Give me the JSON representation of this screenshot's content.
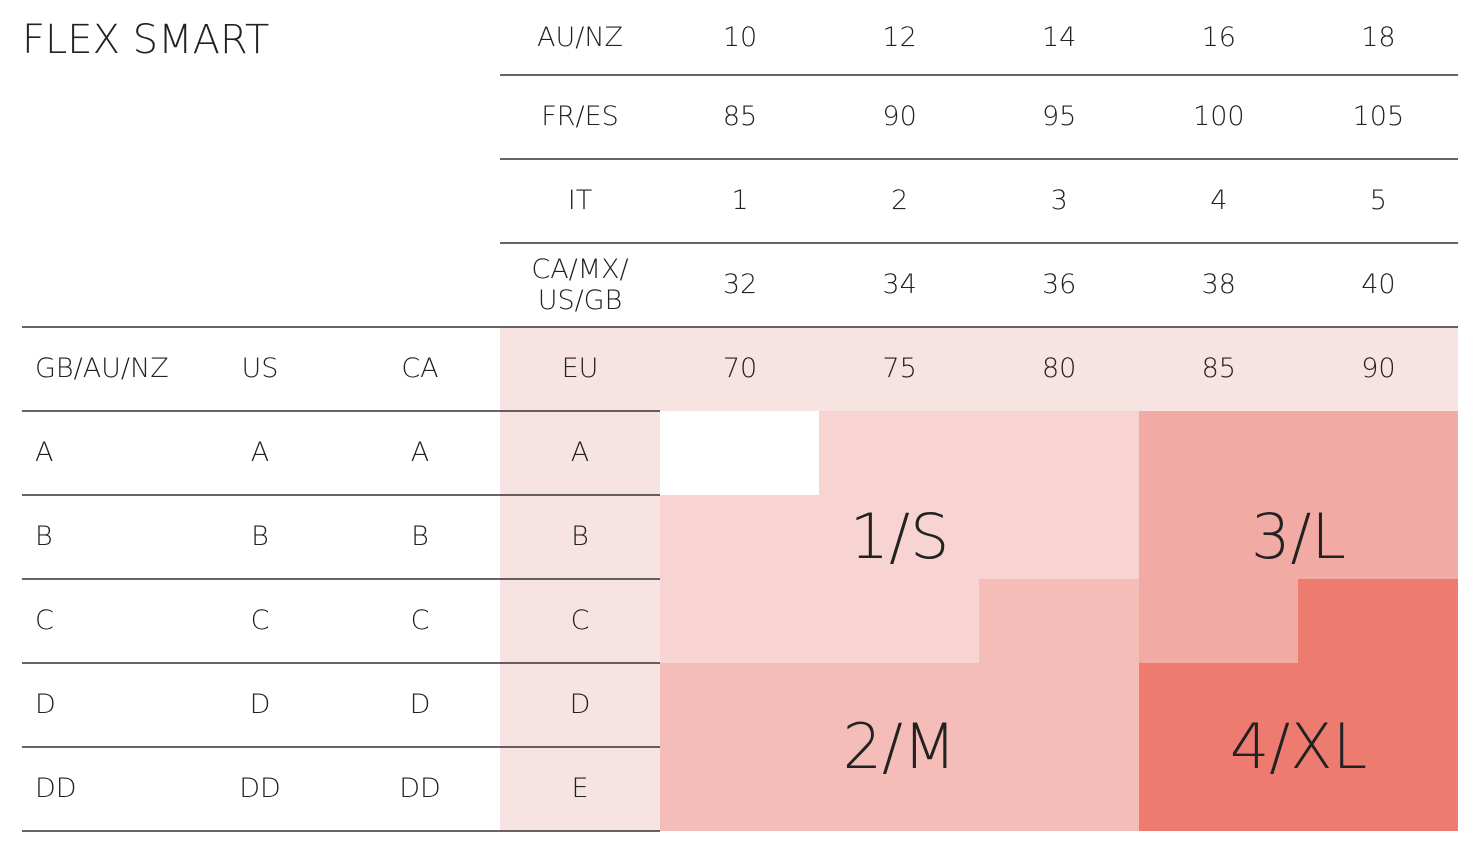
{
  "title": "FLEX SMART",
  "band_sizes": {
    "rows": [
      {
        "label": "AU/NZ",
        "values": [
          10,
          12,
          14,
          16,
          18
        ]
      },
      {
        "label": "FR/ES",
        "values": [
          85,
          90,
          95,
          100,
          105
        ]
      },
      {
        "label": "IT",
        "values": [
          1,
          2,
          3,
          4,
          5
        ]
      },
      {
        "label": "CA/MX/ US/GB",
        "values": [
          32,
          34,
          36,
          38,
          40
        ]
      }
    ]
  },
  "cup_table": {
    "headers": [
      "GB/AU/NZ",
      "US",
      "CA",
      "EU"
    ],
    "band_values": [
      70,
      75,
      80,
      85,
      90
    ],
    "rows": [
      [
        "A",
        "A",
        "A",
        "A"
      ],
      [
        "B",
        "B",
        "B",
        "B"
      ],
      [
        "C",
        "C",
        "C",
        "C"
      ],
      [
        "D",
        "D",
        "D",
        "D"
      ],
      [
        "DD",
        "DD",
        "DD",
        "E"
      ]
    ]
  },
  "sizes": [
    "1/S",
    "2/M",
    "3/L",
    "4/XL"
  ]
}
